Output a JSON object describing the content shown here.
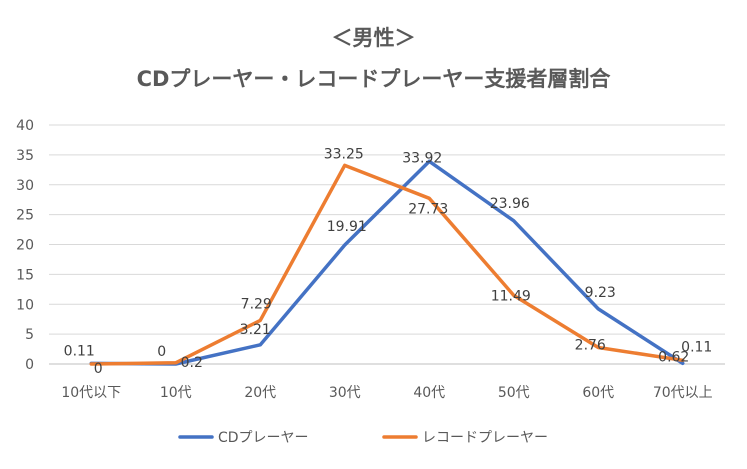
{
  "chart_data": {
    "type": "line",
    "title_line1": "＜男性＞",
    "title_line2": "CDプレーヤー・レコードプレーヤー支援者層割合",
    "categories": [
      "10代以下",
      "10代",
      "20代",
      "30代",
      "40代",
      "50代",
      "60代",
      "70代以上"
    ],
    "series": [
      {
        "name": "CDプレーヤー",
        "color": "#4472C4",
        "values": [
          0.11,
          0,
          3.21,
          19.91,
          33.92,
          23.96,
          9.23,
          0.11
        ],
        "labels": [
          "0.11",
          "0",
          "3.21",
          "19.91",
          "33.92",
          "23.96",
          "9.23",
          "0.11"
        ]
      },
      {
        "name": "レコードプレーヤー",
        "color": "#ED7D31",
        "values": [
          0,
          0.2,
          7.29,
          33.25,
          27.73,
          11.49,
          2.76,
          0.62
        ],
        "labels": [
          "0",
          "0.2",
          "7.29",
          "33.25",
          "27.73",
          "11.49",
          "2.76",
          "0.62"
        ]
      }
    ],
    "yticks": [
      "0",
      "5",
      "10",
      "15",
      "20",
      "25",
      "30",
      "35",
      "40"
    ],
    "ylim": [
      0,
      40
    ],
    "grid": true,
    "legend": "bottom"
  }
}
